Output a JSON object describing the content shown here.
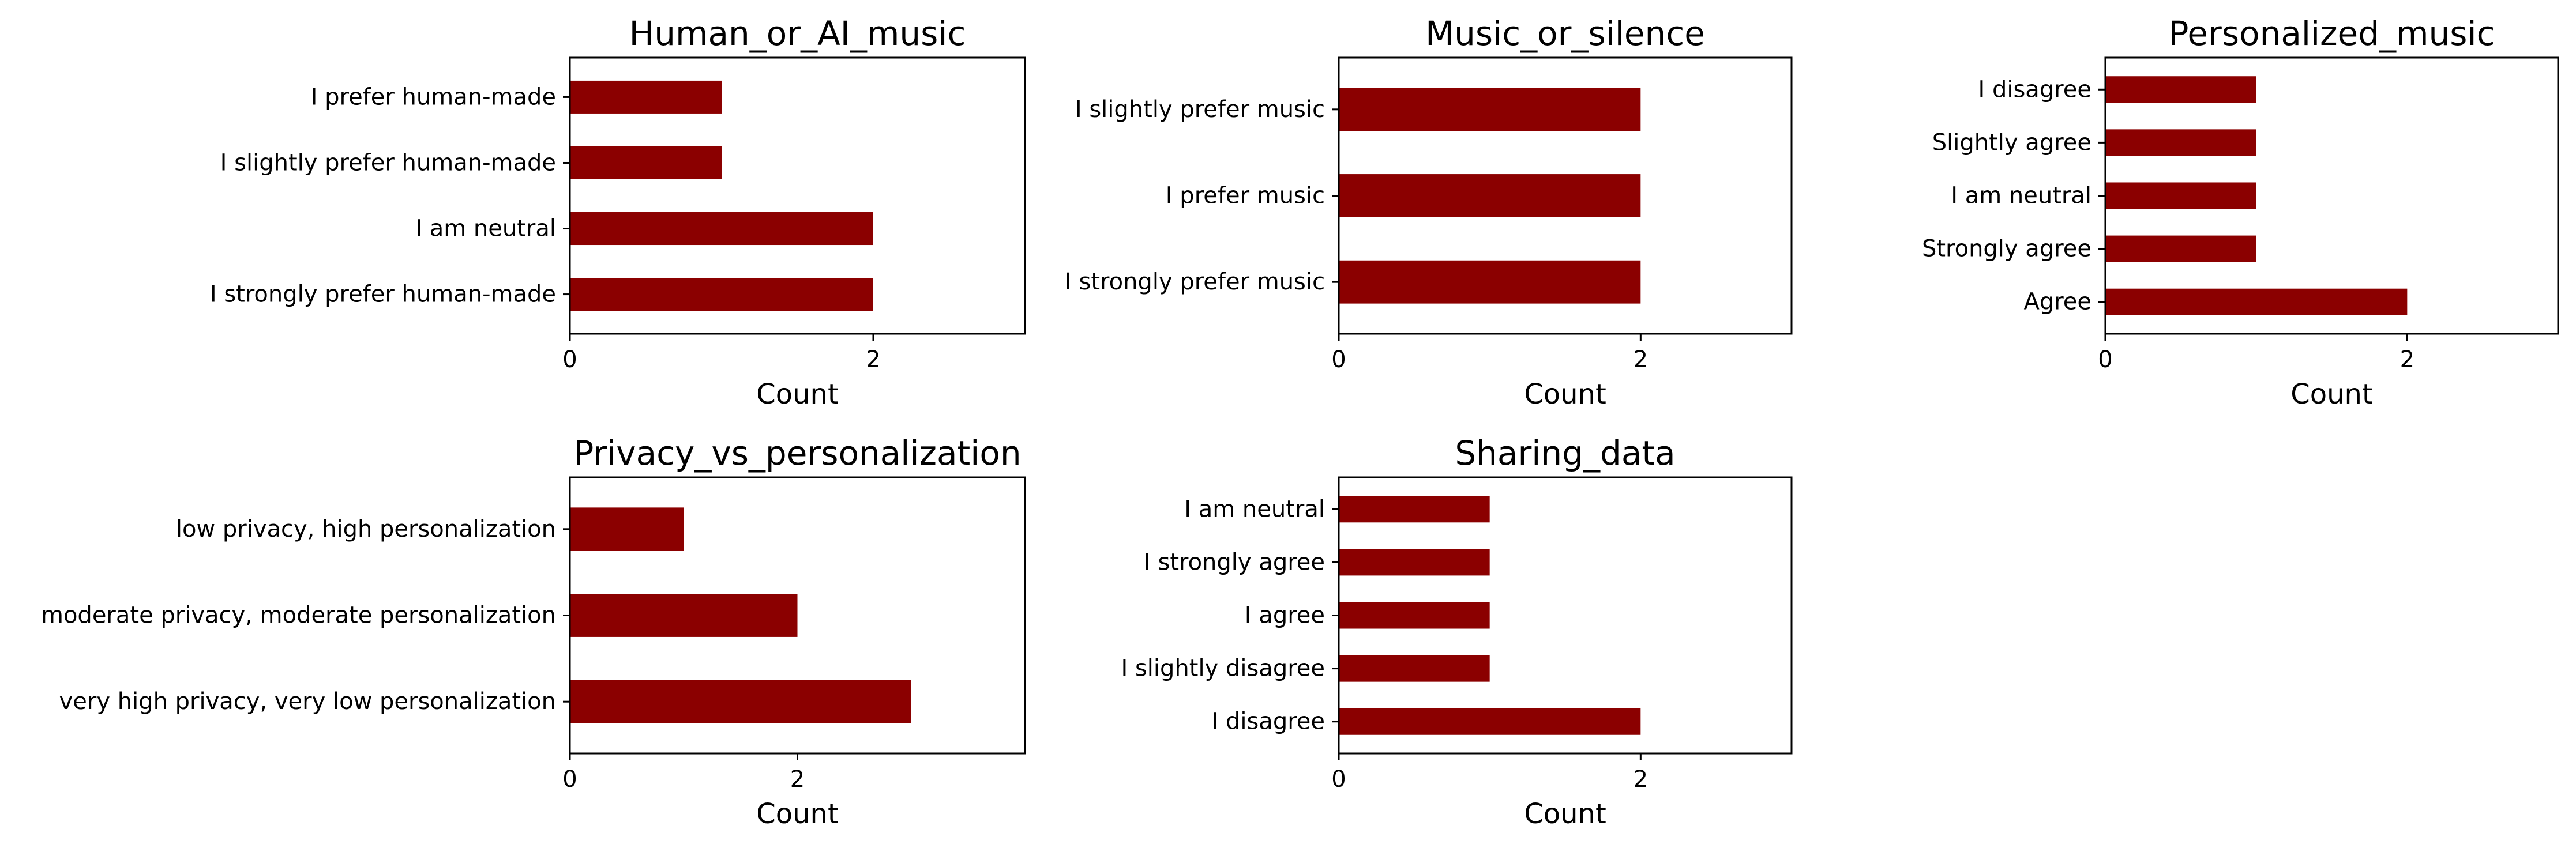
{
  "figure": {
    "bar_color": "#8b0000",
    "frame_color": "#000000",
    "background": "#ffffff"
  },
  "chart_data": [
    {
      "type": "bar",
      "orientation": "horizontal",
      "title": "Human_or_AI_music",
      "xlabel": "Count",
      "ylabel": "",
      "categories": [
        "I prefer human-made",
        "I slightly prefer human-made",
        "I am neutral",
        "I strongly prefer human-made"
      ],
      "values": [
        1,
        1,
        2,
        2
      ],
      "xlim": [
        0,
        3
      ],
      "xticks": [
        0,
        2
      ],
      "grid": false,
      "legend": "none"
    },
    {
      "type": "bar",
      "orientation": "horizontal",
      "title": "Music_or_silence",
      "xlabel": "Count",
      "ylabel": "",
      "categories": [
        "I slightly prefer music",
        "I prefer music",
        "I strongly prefer music"
      ],
      "values": [
        2,
        2,
        2
      ],
      "xlim": [
        0,
        3
      ],
      "xticks": [
        0,
        2
      ],
      "grid": false,
      "legend": "none"
    },
    {
      "type": "bar",
      "orientation": "horizontal",
      "title": "Personalized_music",
      "xlabel": "Count",
      "ylabel": "",
      "categories": [
        "I disagree",
        "Slightly agree",
        "I am neutral",
        "Strongly agree",
        "Agree"
      ],
      "values": [
        1,
        1,
        1,
        1,
        2
      ],
      "xlim": [
        0,
        3
      ],
      "xticks": [
        0,
        2
      ],
      "grid": false,
      "legend": "none"
    },
    {
      "type": "bar",
      "orientation": "horizontal",
      "title": "Privacy_vs_personalization",
      "xlabel": "Count",
      "ylabel": "",
      "categories": [
        "low privacy, high personalization",
        "moderate privacy, moderate personalization",
        "very high privacy, very low personalization"
      ],
      "values": [
        1,
        2,
        3
      ],
      "xlim": [
        0,
        4
      ],
      "xticks": [
        0,
        2
      ],
      "grid": false,
      "legend": "none"
    },
    {
      "type": "bar",
      "orientation": "horizontal",
      "title": "Sharing_data",
      "xlabel": "Count",
      "ylabel": "",
      "categories": [
        "I am neutral",
        "I strongly agree",
        "I agree",
        "I slightly disagree",
        "I disagree"
      ],
      "values": [
        1,
        1,
        1,
        1,
        2
      ],
      "xlim": [
        0,
        3
      ],
      "xticks": [
        0,
        2
      ],
      "grid": false,
      "legend": "none"
    }
  ]
}
